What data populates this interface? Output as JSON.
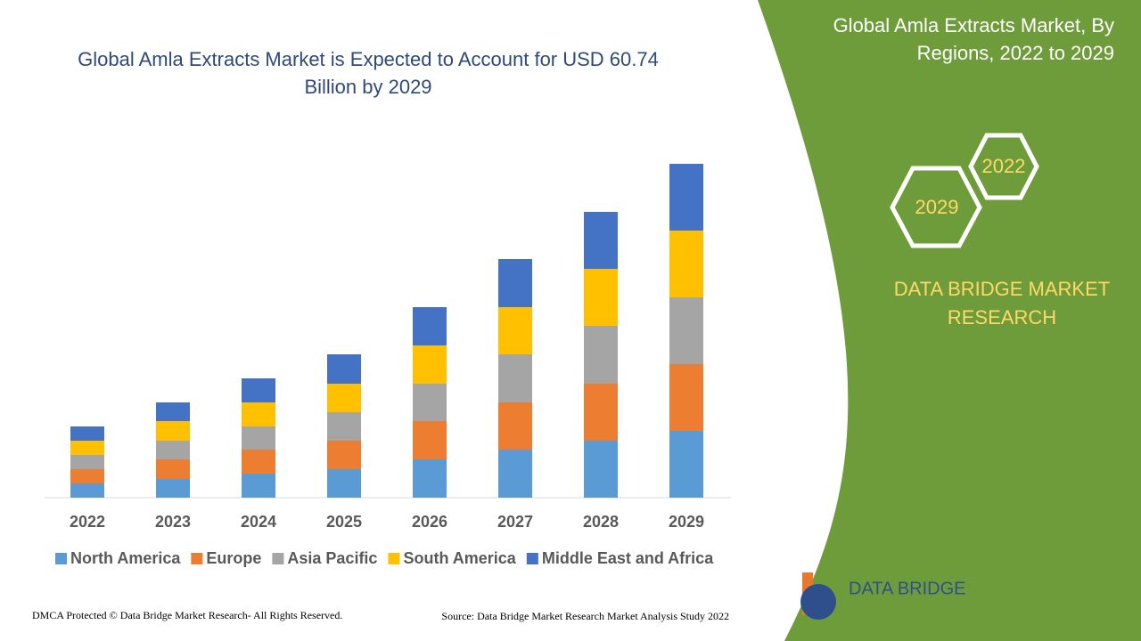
{
  "chart_data": {
    "type": "bar",
    "stacked": true,
    "title": "Global Amla Extracts Market is Expected to Account for USD 60.74 Billion by 2029",
    "categories": [
      "2022",
      "2023",
      "2024",
      "2025",
      "2026",
      "2027",
      "2028",
      "2029"
    ],
    "series": [
      {
        "name": "North America",
        "color": "#5b9bd5",
        "values": [
          16,
          21,
          27,
          32,
          43,
          54,
          64,
          75
        ]
      },
      {
        "name": "Europe",
        "color": "#ed7d31",
        "values": [
          16,
          22,
          27,
          32,
          43,
          53,
          64,
          75
        ]
      },
      {
        "name": "Asia Pacific",
        "color": "#a5a5a5",
        "values": [
          16,
          21,
          26,
          32,
          42,
          54,
          65,
          75
        ]
      },
      {
        "name": "South America",
        "color": "#ffc000",
        "values": [
          16,
          22,
          27,
          32,
          43,
          53,
          64,
          75
        ]
      },
      {
        "name": "Middle East and Africa",
        "color": "#4472c4",
        "values": [
          16,
          21,
          27,
          33,
          43,
          54,
          64,
          75
        ]
      }
    ]
  },
  "side_panel": {
    "title": "Global Amla Extracts Market, By Regions, 2022 to 2029",
    "hexagons": [
      "2022",
      "2029"
    ],
    "brand": "DATA BRIDGE MARKET RESEARCH"
  },
  "logo": {
    "name": "DATA BRIDGE"
  },
  "footer": {
    "copyright": "DMCA Protected © Data Bridge Market Research- All Rights Reserved.",
    "source": "Source: Data Bridge Market Research Market Analysis Study 2022"
  }
}
